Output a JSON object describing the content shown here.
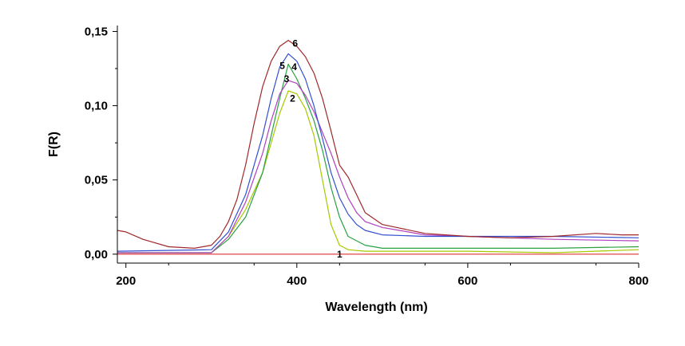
{
  "chart_data": {
    "type": "line",
    "title": "",
    "xlabel": "Wavelength (nm)",
    "ylabel": "F(R)",
    "xlim": [
      190,
      800
    ],
    "ylim": [
      -0.006,
      0.154
    ],
    "x_ticks": [
      200,
      400,
      600,
      800
    ],
    "x_tick_labels": [
      "200",
      "400",
      "600",
      "800"
    ],
    "y_ticks": [
      0.0,
      0.05,
      0.1,
      0.15
    ],
    "y_tick_labels": [
      "0,00",
      "0,05",
      "0,10",
      "0,15"
    ],
    "grid": false,
    "legend": "none",
    "series": [
      {
        "label": "1",
        "color": "#e03030",
        "x": [
          190,
          800
        ],
        "y": [
          0.0,
          0.0
        ],
        "label_at": [
          450,
          0.0
        ]
      },
      {
        "label": "2",
        "color": "#a8c800",
        "x": [
          190,
          300,
          320,
          340,
          360,
          370,
          380,
          390,
          400,
          410,
          420,
          430,
          440,
          450,
          460,
          480,
          500,
          600,
          700,
          800
        ],
        "y": [
          0.001,
          0.001,
          0.012,
          0.03,
          0.055,
          0.075,
          0.095,
          0.11,
          0.108,
          0.098,
          0.08,
          0.05,
          0.02,
          0.006,
          0.003,
          0.002,
          0.002,
          0.002,
          0.001,
          0.003
        ],
        "label_at": [
          395,
          0.105
        ]
      },
      {
        "label": "3",
        "color": "#2aa040",
        "x": [
          190,
          300,
          320,
          340,
          360,
          370,
          380,
          390,
          400,
          410,
          420,
          430,
          440,
          450,
          460,
          480,
          500,
          550,
          600,
          700,
          800
        ],
        "y": [
          0.001,
          0.001,
          0.01,
          0.025,
          0.055,
          0.08,
          0.105,
          0.128,
          0.118,
          0.105,
          0.09,
          0.07,
          0.045,
          0.025,
          0.012,
          0.006,
          0.004,
          0.004,
          0.004,
          0.004,
          0.005
        ],
        "label_at": [
          388,
          0.118
        ]
      },
      {
        "label": "4",
        "color": "#b040c0",
        "x": [
          190,
          300,
          320,
          340,
          360,
          370,
          380,
          390,
          400,
          410,
          420,
          430,
          440,
          450,
          460,
          470,
          480,
          500,
          520,
          550,
          600,
          700,
          800
        ],
        "y": [
          0.001,
          0.001,
          0.012,
          0.035,
          0.068,
          0.09,
          0.108,
          0.117,
          0.115,
          0.107,
          0.096,
          0.082,
          0.068,
          0.052,
          0.038,
          0.028,
          0.022,
          0.018,
          0.016,
          0.013,
          0.012,
          0.01,
          0.009
        ],
        "label_at": [
          397,
          0.126
        ]
      },
      {
        "label": "5",
        "color": "#3050d0",
        "x": [
          190,
          300,
          320,
          340,
          360,
          370,
          380,
          390,
          400,
          410,
          420,
          430,
          440,
          450,
          460,
          470,
          480,
          500,
          550,
          600,
          700,
          800
        ],
        "y": [
          0.002,
          0.003,
          0.015,
          0.04,
          0.08,
          0.105,
          0.126,
          0.135,
          0.13,
          0.118,
          0.1,
          0.078,
          0.055,
          0.038,
          0.027,
          0.02,
          0.016,
          0.013,
          0.012,
          0.012,
          0.012,
          0.011
        ],
        "label_at": [
          383,
          0.127
        ]
      },
      {
        "label": "6",
        "color": "#a0282a",
        "x": [
          190,
          200,
          220,
          250,
          280,
          300,
          310,
          320,
          330,
          340,
          350,
          360,
          370,
          380,
          390,
          400,
          410,
          420,
          430,
          440,
          450,
          460,
          470,
          480,
          500,
          550,
          600,
          650,
          700,
          750,
          780,
          800
        ],
        "y": [
          0.016,
          0.015,
          0.01,
          0.005,
          0.004,
          0.006,
          0.012,
          0.022,
          0.037,
          0.06,
          0.088,
          0.113,
          0.13,
          0.14,
          0.144,
          0.14,
          0.133,
          0.122,
          0.105,
          0.083,
          0.06,
          0.052,
          0.04,
          0.028,
          0.02,
          0.014,
          0.012,
          0.011,
          0.012,
          0.014,
          0.013,
          0.013
        ],
        "label_at": [
          398,
          0.142
        ]
      }
    ]
  }
}
